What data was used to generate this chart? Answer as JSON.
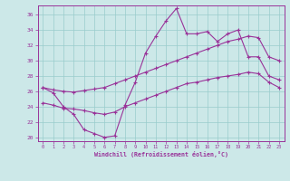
{
  "xlabel": "Windchill (Refroidissement éolien,°C)",
  "xlim": [
    -0.5,
    23.5
  ],
  "ylim": [
    19.5,
    37.2
  ],
  "yticks": [
    20,
    22,
    24,
    26,
    28,
    30,
    32,
    34,
    36
  ],
  "xticks": [
    0,
    1,
    2,
    3,
    4,
    5,
    6,
    7,
    8,
    9,
    10,
    11,
    12,
    13,
    14,
    15,
    16,
    17,
    18,
    19,
    20,
    21,
    22,
    23
  ],
  "background_color": "#cce8e8",
  "line_color": "#993399",
  "grid_color": "#99cccc",
  "line1_y": [
    26.5,
    25.8,
    24.0,
    23.0,
    21.0,
    20.5,
    20.0,
    20.2,
    24.2,
    27.2,
    31.0,
    33.2,
    35.2,
    36.8,
    33.5,
    33.5,
    33.8,
    32.5,
    33.5,
    34.0,
    30.5,
    30.5,
    28.0,
    27.5
  ],
  "line2_y": [
    26.5,
    26.2,
    26.0,
    25.9,
    26.1,
    26.3,
    26.5,
    27.0,
    27.5,
    28.0,
    28.5,
    29.0,
    29.5,
    30.0,
    30.5,
    31.0,
    31.5,
    32.0,
    32.5,
    32.8,
    33.2,
    33.0,
    30.5,
    30.0
  ],
  "line3_y": [
    24.5,
    24.2,
    23.8,
    23.7,
    23.5,
    23.2,
    23.0,
    23.3,
    24.0,
    24.5,
    25.0,
    25.5,
    26.0,
    26.5,
    27.0,
    27.2,
    27.5,
    27.8,
    28.0,
    28.2,
    28.5,
    28.3,
    27.2,
    26.5
  ]
}
